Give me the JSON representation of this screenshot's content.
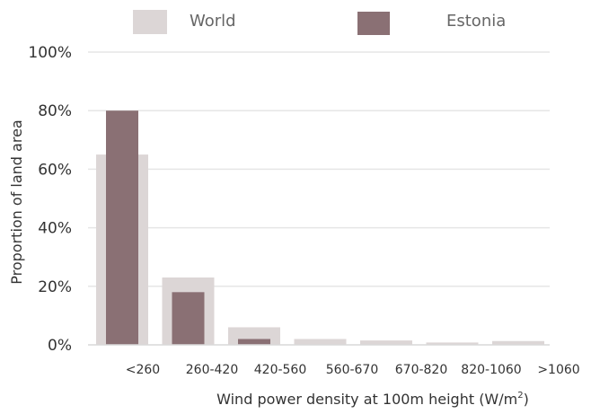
{
  "chart_data": {
    "type": "bar",
    "categories": [
      "<260",
      "260-420",
      "420-560",
      "560-670",
      "670-820",
      "820-1060",
      ">1060"
    ],
    "series": [
      {
        "name": "World",
        "values": [
          65,
          23,
          6,
          2,
          1.5,
          0.8,
          1.3
        ],
        "color": "#dcd6d6"
      },
      {
        "name": "Estonia",
        "values": [
          80,
          18,
          2,
          0,
          0,
          0,
          0
        ],
        "color": "#8a7074"
      }
    ],
    "yticks": [
      "0%",
      "20%",
      "40%",
      "60%",
      "80%",
      "100%"
    ],
    "ylim": [
      0,
      100
    ],
    "ylabel": "Proportion of land area",
    "xlabel_main": "Wind power density at 100m height (W/m",
    "xlabel_sup": "2",
    "xlabel_close": ")",
    "legend_position": "top",
    "grid": true,
    "colors": {
      "grid": "#e6e6e6",
      "axis": "#d9d9d9",
      "text": "#333333",
      "legend_text": "#666666"
    }
  }
}
